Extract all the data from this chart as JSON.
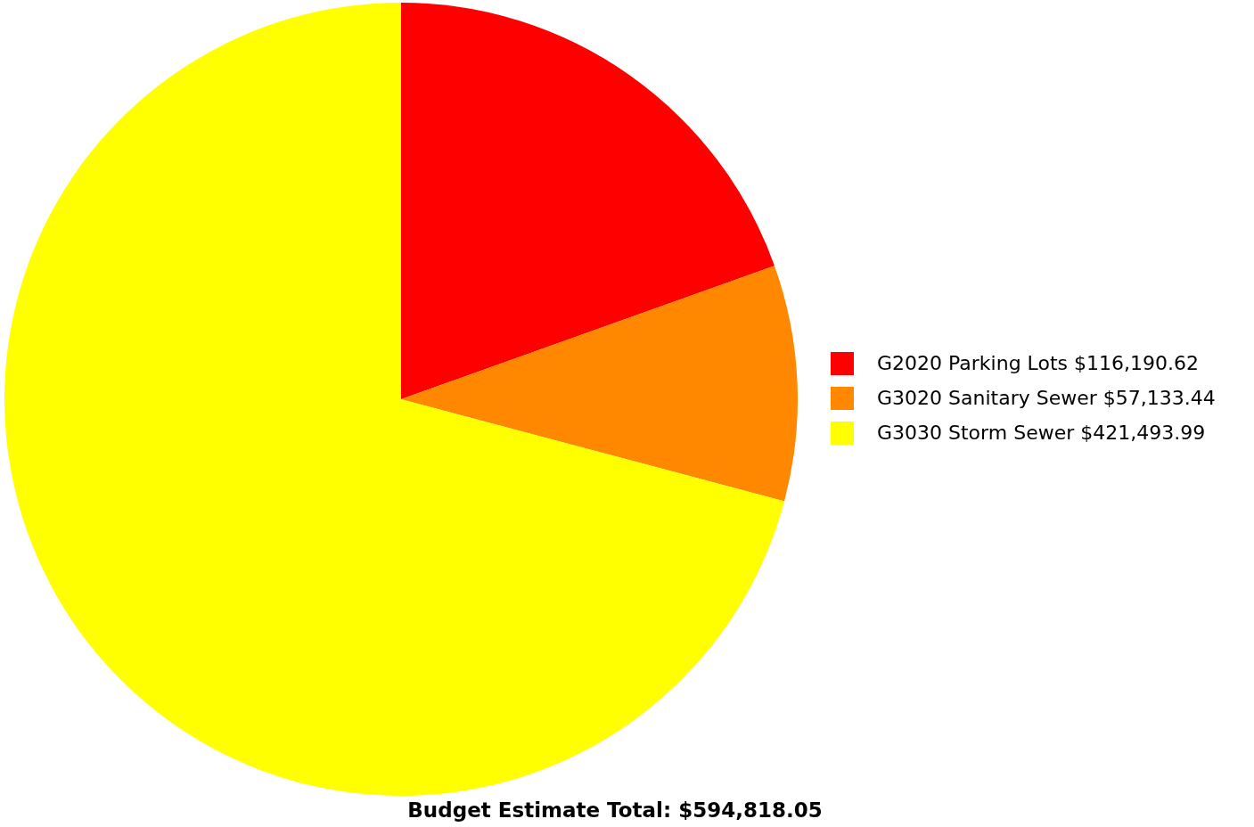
{
  "chart_data": {
    "type": "pie",
    "categories": [
      "G2020 Parking Lots",
      "G3020 Sanitary Sewer",
      "G3030 Storm Sewer"
    ],
    "values": [
      116190.62,
      57133.44,
      421493.99
    ],
    "value_labels": [
      "$116,190.62",
      "$57,133.44",
      "$421,493.99"
    ],
    "colors": [
      "#ff0000",
      "#ff8800",
      "#ffff00"
    ],
    "legend": "right",
    "annotations": [
      "Budget Estimate Total: $594,818.05"
    ]
  }
}
